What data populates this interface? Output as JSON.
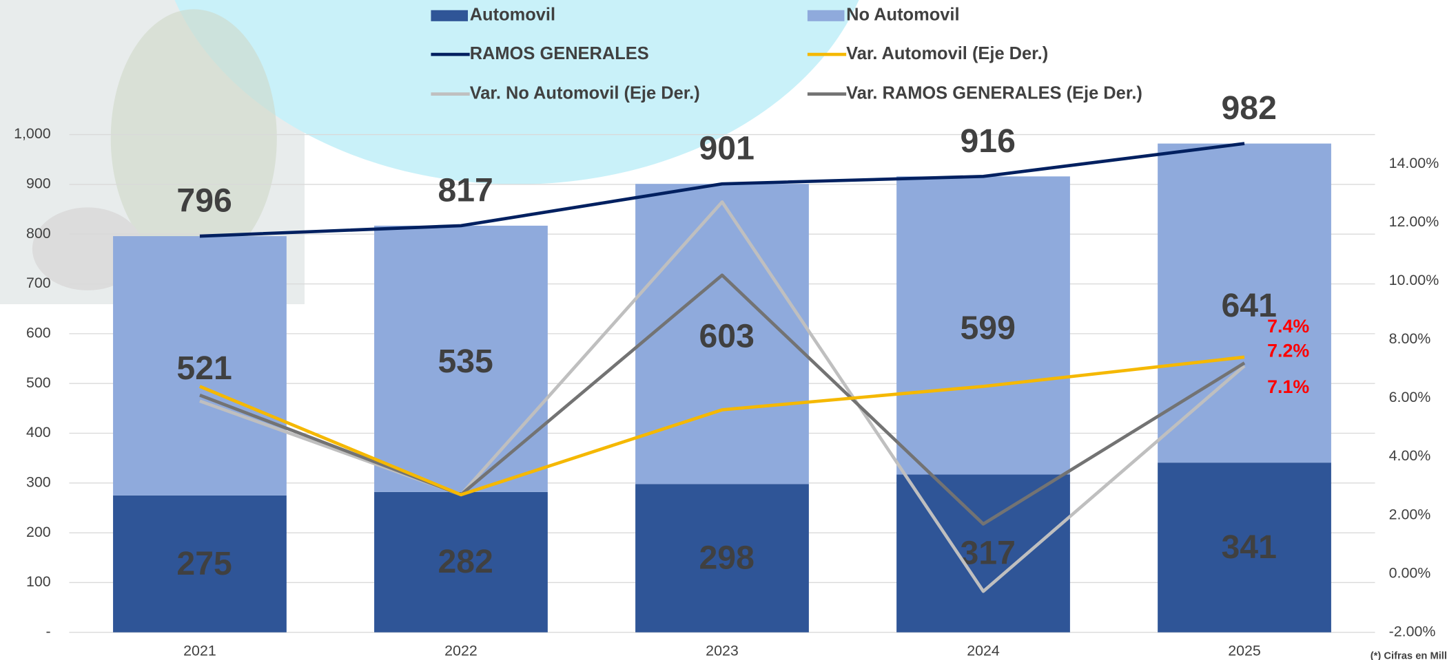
{
  "chart_data": {
    "type": "bar",
    "categories": [
      "2021",
      "2022",
      "2023",
      "2024",
      "2025"
    ],
    "series": [
      {
        "name": "Automovil",
        "type": "bar",
        "color": "#2f5597",
        "values": [
          275,
          282,
          298,
          317,
          341
        ]
      },
      {
        "name": "No Automovil",
        "type": "bar",
        "color": "#8faadc",
        "values": [
          521,
          535,
          603,
          599,
          641
        ]
      },
      {
        "name": "RAMOS GENERALES",
        "type": "line",
        "color": "#002060",
        "values": [
          796,
          817,
          901,
          916,
          982
        ]
      },
      {
        "name": "Var. Automovil (Eje Der.)",
        "type": "line",
        "axis": "y2",
        "color": "#f5b800",
        "values": [
          6.4,
          2.7,
          5.6,
          6.4,
          7.4
        ],
        "value_labels": [
          null,
          null,
          null,
          null,
          "7.4%"
        ]
      },
      {
        "name": "Var. No Automovil (Eje Der.)",
        "type": "line",
        "axis": "y2",
        "color": "#bfbfbf",
        "values": [
          5.9,
          2.7,
          12.7,
          -0.6,
          7.1
        ],
        "value_labels": [
          null,
          null,
          null,
          null,
          "7.1%"
        ]
      },
      {
        "name": "Var. RAMOS GENERALES (Eje Der.)",
        "type": "line",
        "axis": "y2",
        "color": "#737373",
        "values": [
          6.1,
          2.7,
          10.2,
          1.7,
          7.2
        ],
        "value_labels": [
          null,
          null,
          null,
          null,
          "7.2%"
        ]
      }
    ],
    "ylim": [
      0,
      1000
    ],
    "yticks": [
      {
        "value": 0,
        "label": "-"
      },
      100,
      200,
      300,
      400,
      500,
      600,
      700,
      800,
      900,
      {
        "value": 1000,
        "label": "1,000"
      }
    ],
    "y2lim": [
      -2,
      15
    ],
    "y2ticks": [
      {
        "value": -2,
        "label": "-2.00%"
      },
      {
        "value": 0,
        "label": "0.00%"
      },
      {
        "value": 2,
        "label": "2.00%"
      },
      {
        "value": 4,
        "label": "4.00%"
      },
      {
        "value": 6,
        "label": "6.00%"
      },
      {
        "value": 8,
        "label": "8.00%"
      },
      {
        "value": 10,
        "label": "10.00%"
      },
      {
        "value": 12,
        "label": "12.00%"
      },
      {
        "value": 14,
        "label": "14.00%"
      }
    ],
    "grid": true,
    "note": "(*) Cifras en Mill"
  }
}
